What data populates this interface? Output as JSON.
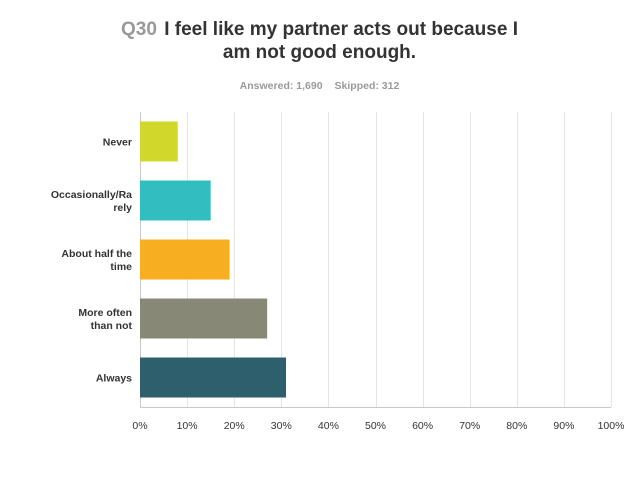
{
  "survey": {
    "question_number": "Q30",
    "question_line1": "I feel like my partner acts out because I",
    "question_line2": "am not good enough.",
    "answered_label": "Answered: 1,690",
    "skipped_label": "Skipped: 312"
  },
  "chart_data": {
    "type": "bar",
    "orientation": "horizontal",
    "categories": [
      "Never",
      "Occasionally/Rarely",
      "About half the time",
      "More often than not",
      "Always"
    ],
    "category_label_lines": [
      [
        "Never"
      ],
      [
        "Occasionally/Ra",
        "rely"
      ],
      [
        "About half the",
        "time"
      ],
      [
        "More often",
        "than not"
      ],
      [
        "Always"
      ]
    ],
    "values": [
      8,
      15,
      19,
      27,
      31
    ],
    "value_unit": "%",
    "colors": [
      "#d1d72b",
      "#32bec1",
      "#f8ae21",
      "#878876",
      "#2e5f6c"
    ],
    "xlim": [
      0,
      100
    ],
    "xticks": [
      "0%",
      "10%",
      "20%",
      "30%",
      "40%",
      "50%",
      "60%",
      "70%",
      "80%",
      "90%",
      "100%"
    ],
    "grid": true,
    "title": "I feel like my partner acts out because I am not good enough.",
    "xlabel": "",
    "ylabel": ""
  }
}
